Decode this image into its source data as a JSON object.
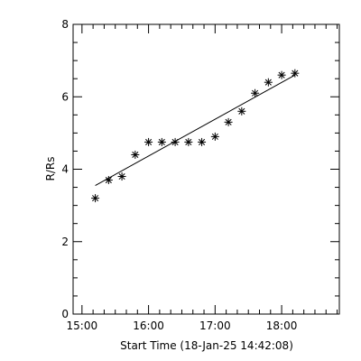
{
  "chart_data": {
    "type": "scatter",
    "title": "",
    "xlabel": "Start Time (18-Jan-25 14:42:08)",
    "ylabel": "R/Rs",
    "xlim": [
      "14:52",
      "18:52"
    ],
    "ylim": [
      0,
      8
    ],
    "grid": false,
    "x_ticks": [
      "15:00",
      "16:00",
      "17:00",
      "18:00"
    ],
    "y_ticks": [
      "0",
      "2",
      "4",
      "6",
      "8"
    ],
    "marker": "asterisk",
    "series": [
      {
        "x": [
          "15:12",
          "15:24",
          "15:36",
          "15:48",
          "16:00",
          "16:12",
          "16:24",
          "16:36",
          "16:48",
          "17:00",
          "17:12",
          "17:24",
          "17:36",
          "17:48",
          "18:00",
          "18:12"
        ],
        "y": [
          3.2,
          3.7,
          3.8,
          4.4,
          4.75,
          4.75,
          4.75,
          4.75,
          4.75,
          4.9,
          5.3,
          5.6,
          6.1,
          6.4,
          6.6,
          6.65
        ]
      }
    ],
    "fit_line": {
      "x": [
        "15:12",
        "18:12"
      ],
      "y": [
        3.55,
        6.6
      ]
    },
    "line_color": "#000000"
  }
}
